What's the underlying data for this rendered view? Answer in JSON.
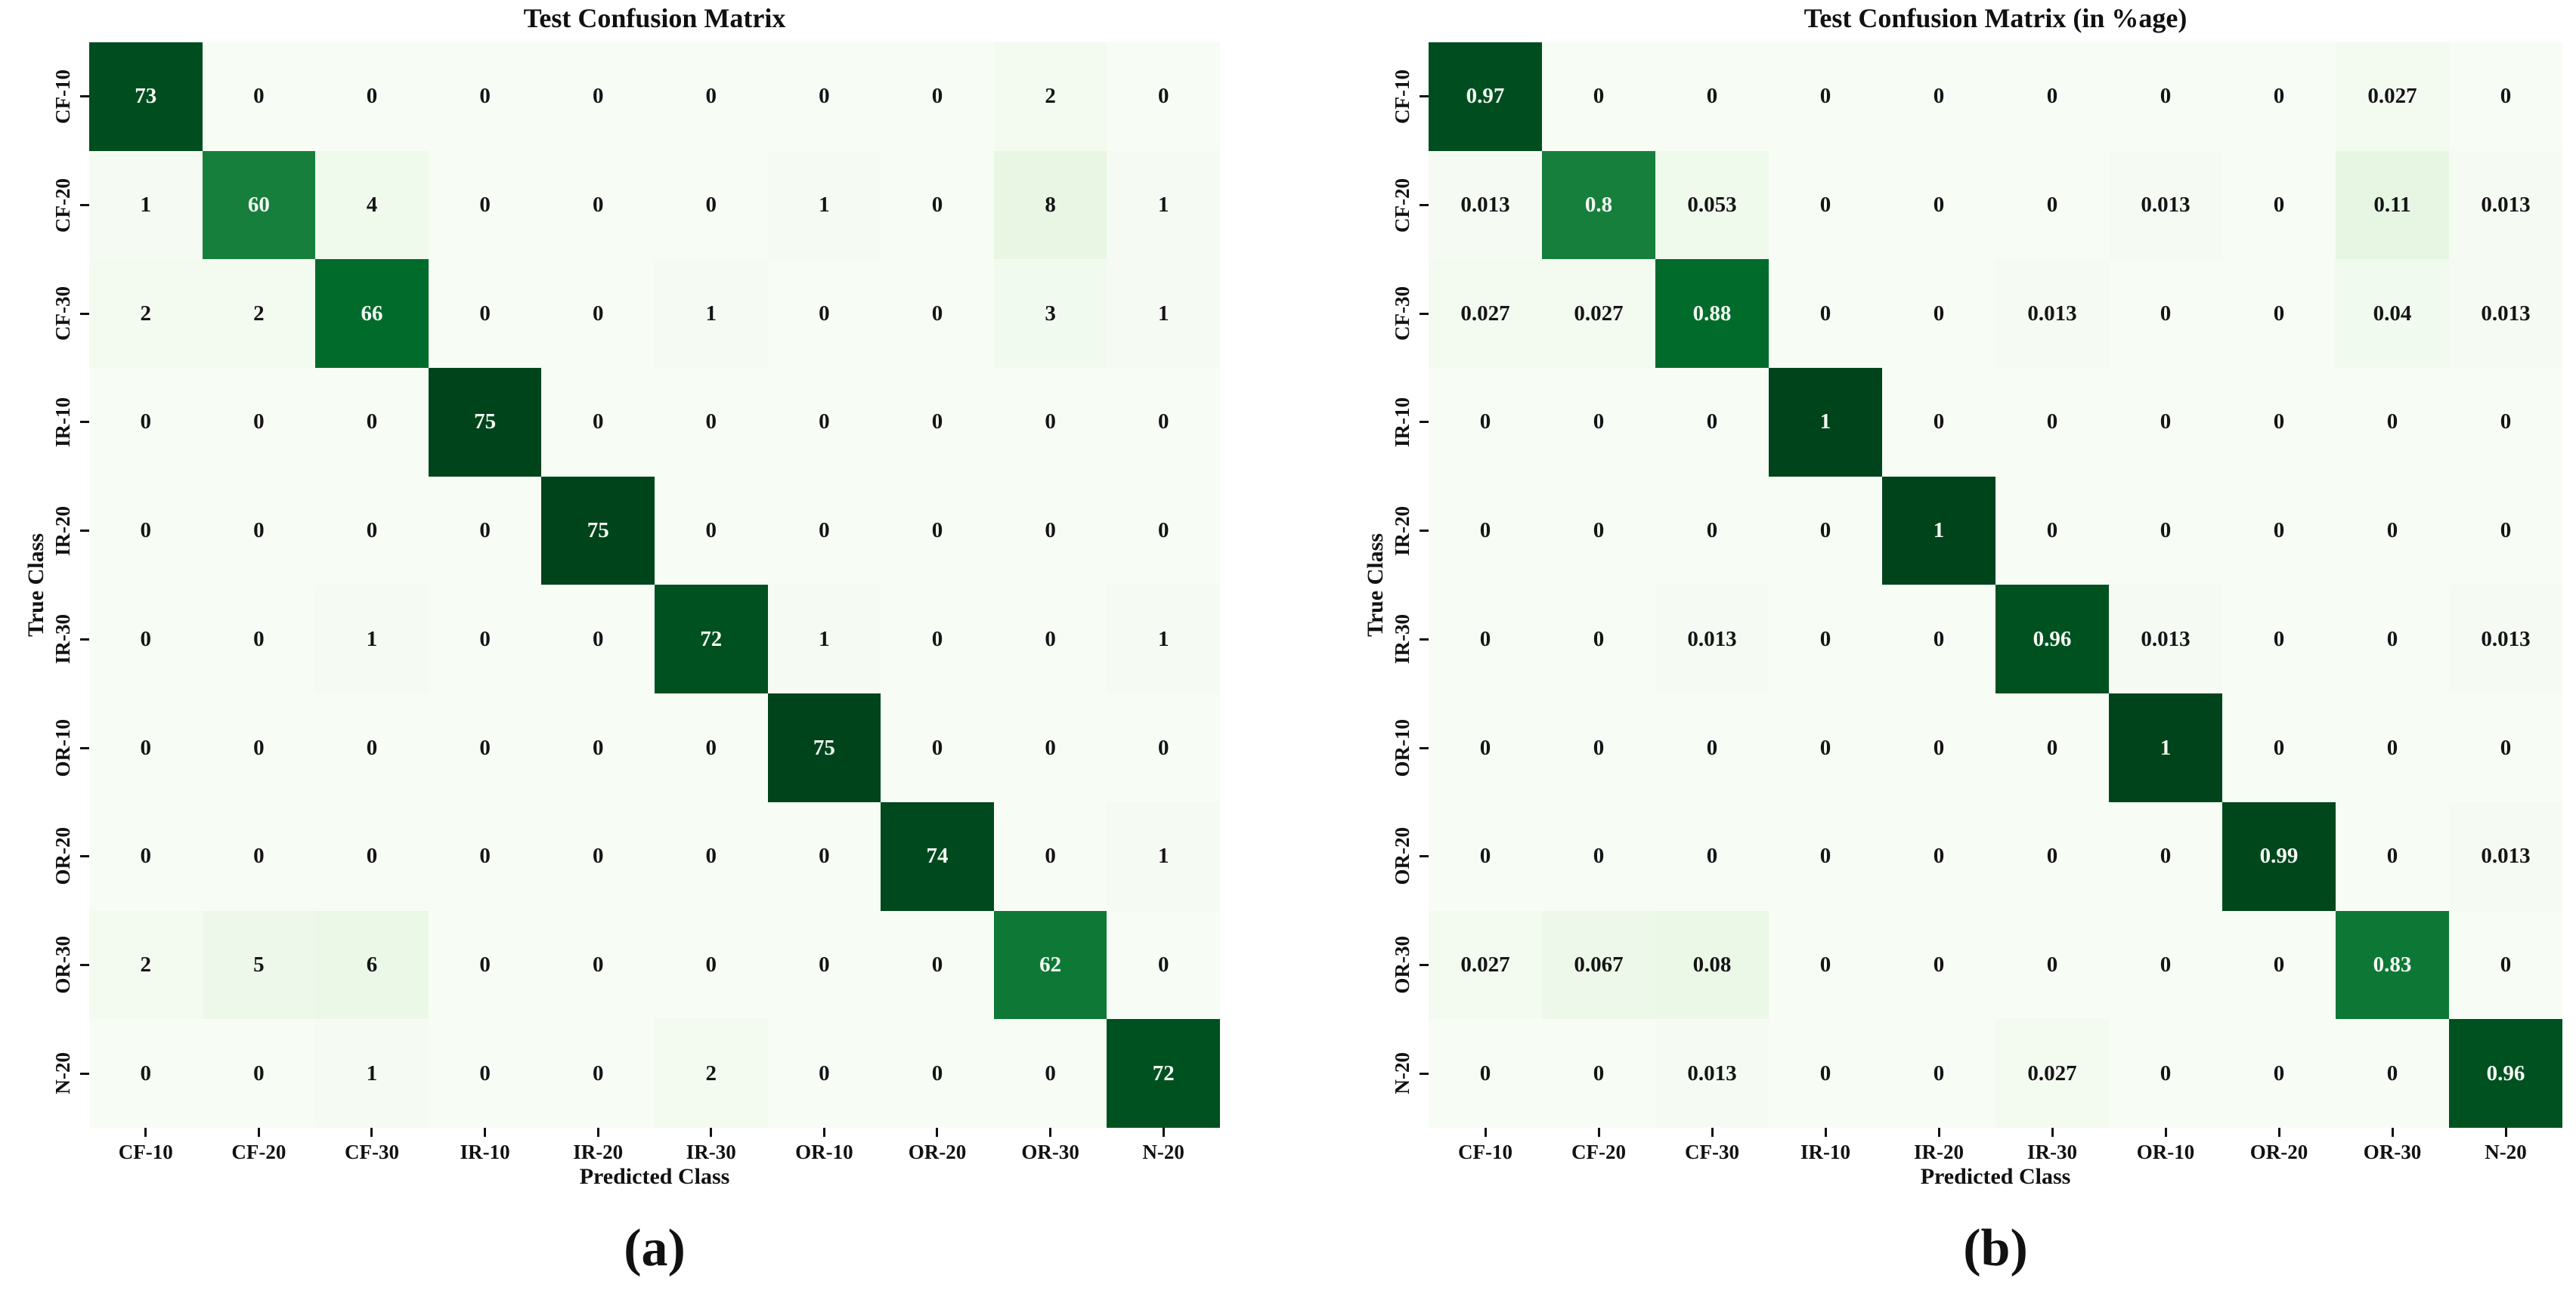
{
  "chart_data": [
    {
      "type": "heatmap",
      "title": "Test Confusion Matrix",
      "xlabel": "Predicted Class",
      "ylabel": "True Class",
      "caption": "(a)",
      "categories": [
        "CF-10",
        "CF-20",
        "CF-30",
        "IR-10",
        "IR-20",
        "IR-30",
        "OR-10",
        "OR-20",
        "OR-30",
        "N-20"
      ],
      "rows": [
        [
          73,
          0,
          0,
          0,
          0,
          0,
          0,
          0,
          2,
          0
        ],
        [
          1,
          60,
          4,
          0,
          0,
          0,
          1,
          0,
          8,
          1
        ],
        [
          2,
          2,
          66,
          0,
          0,
          1,
          0,
          0,
          3,
          1
        ],
        [
          0,
          0,
          0,
          75,
          0,
          0,
          0,
          0,
          0,
          0
        ],
        [
          0,
          0,
          0,
          0,
          75,
          0,
          0,
          0,
          0,
          0
        ],
        [
          0,
          0,
          1,
          0,
          0,
          72,
          1,
          0,
          0,
          1
        ],
        [
          0,
          0,
          0,
          0,
          0,
          0,
          75,
          0,
          0,
          0
        ],
        [
          0,
          0,
          0,
          0,
          0,
          0,
          0,
          74,
          0,
          1
        ],
        [
          2,
          5,
          6,
          0,
          0,
          0,
          0,
          0,
          62,
          0
        ],
        [
          0,
          0,
          1,
          0,
          0,
          2,
          0,
          0,
          0,
          72
        ]
      ],
      "vmin": 0,
      "vmax": 75,
      "colormap": "Greens",
      "grid": false,
      "legend": "none"
    },
    {
      "type": "heatmap",
      "title": "Test Confusion Matrix (in %age)",
      "xlabel": "Predicted Class",
      "ylabel": "True Class",
      "caption": "(b)",
      "categories": [
        "CF-10",
        "CF-20",
        "CF-30",
        "IR-10",
        "IR-20",
        "IR-30",
        "OR-10",
        "OR-20",
        "OR-30",
        "N-20"
      ],
      "rows": [
        [
          0.97,
          0,
          0,
          0,
          0,
          0,
          0,
          0,
          0.027,
          0
        ],
        [
          0.013,
          0.8,
          0.053,
          0,
          0,
          0,
          0.013,
          0,
          0.11,
          0.013
        ],
        [
          0.027,
          0.027,
          0.88,
          0,
          0,
          0.013,
          0,
          0,
          0.04,
          0.013
        ],
        [
          0,
          0,
          0,
          1,
          0,
          0,
          0,
          0,
          0,
          0
        ],
        [
          0,
          0,
          0,
          0,
          1,
          0,
          0,
          0,
          0,
          0
        ],
        [
          0,
          0,
          0.013,
          0,
          0,
          0.96,
          0.013,
          0,
          0,
          0.013
        ],
        [
          0,
          0,
          0,
          0,
          0,
          0,
          1,
          0,
          0,
          0
        ],
        [
          0,
          0,
          0,
          0,
          0,
          0,
          0,
          0.99,
          0,
          0.013
        ],
        [
          0.027,
          0.067,
          0.08,
          0,
          0,
          0,
          0,
          0,
          0.83,
          0
        ],
        [
          0,
          0,
          0.013,
          0,
          0,
          0.027,
          0,
          0,
          0,
          0.96
        ]
      ],
      "vmin": 0,
      "vmax": 1,
      "colormap": "Greens",
      "grid": false,
      "legend": "none"
    }
  ],
  "style": {
    "colormap_anchors": [
      "#f7fcf5",
      "#e5f5e0",
      "#c7e9c0",
      "#a1d99b",
      "#74c476",
      "#41ab5d",
      "#238b45",
      "#006d2c",
      "#00441b"
    ],
    "cell_text_light": "#f5faf4",
    "cell_text_dark": "#141414",
    "tick_color": "#111111",
    "background": "#ffffff"
  }
}
